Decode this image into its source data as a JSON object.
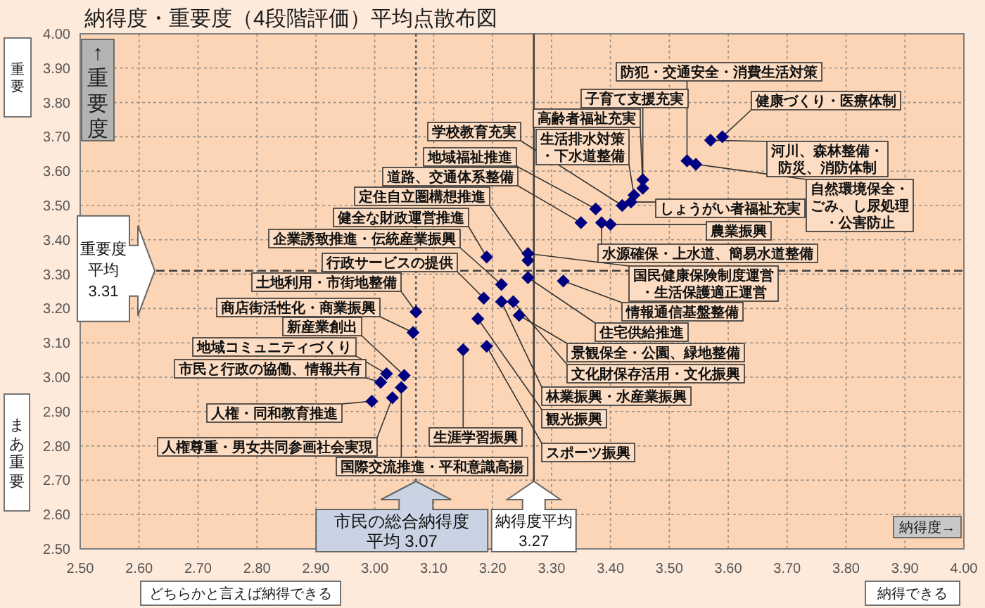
{
  "chart_data": {
    "type": "scatter",
    "title": "納得度・重要度（4段階評価）平均点散布図",
    "xlim": [
      2.5,
      4.0
    ],
    "ylim": [
      2.5,
      4.0
    ],
    "xticks": [
      {
        "value": 2.5,
        "label": "2.50"
      },
      {
        "value": 2.6,
        "label": "2.60"
      },
      {
        "value": 2.7,
        "label": "2.70"
      },
      {
        "value": 2.8,
        "label": "2.80"
      },
      {
        "value": 2.9,
        "label": "2.90"
      },
      {
        "value": 3.0,
        "label": "3.00"
      },
      {
        "value": 3.1,
        "label": "3.10"
      },
      {
        "value": 3.2,
        "label": "3.20"
      },
      {
        "value": 3.3,
        "label": "3.30"
      },
      {
        "value": 3.4,
        "label": "3.40"
      },
      {
        "value": 3.5,
        "label": "3.50"
      },
      {
        "value": 3.6,
        "label": "3.60"
      },
      {
        "value": 3.7,
        "label": "3.70"
      },
      {
        "value": 3.8,
        "label": "3.80"
      },
      {
        "value": 3.9,
        "label": "3.90"
      },
      {
        "value": 4.0,
        "label": "4.00"
      }
    ],
    "yticks": [
      {
        "value": 2.5,
        "label": "2.50"
      },
      {
        "value": 2.6,
        "label": "2.60"
      },
      {
        "value": 2.7,
        "label": "2.70"
      },
      {
        "value": 2.8,
        "label": "2.80"
      },
      {
        "value": 2.9,
        "label": "2.90"
      },
      {
        "value": 3.0,
        "label": "3.00"
      },
      {
        "value": 3.1,
        "label": "3.10"
      },
      {
        "value": 3.2,
        "label": "3.20"
      },
      {
        "value": 3.3,
        "label": "3.30"
      },
      {
        "value": 3.4,
        "label": "3.40"
      },
      {
        "value": 3.5,
        "label": "3.50"
      },
      {
        "value": 3.6,
        "label": "3.60"
      },
      {
        "value": 3.7,
        "label": "3.70"
      },
      {
        "value": 3.8,
        "label": "3.80"
      },
      {
        "value": 3.9,
        "label": "3.90"
      },
      {
        "value": 4.0,
        "label": "4.00"
      }
    ],
    "grid": true,
    "marker": "diamond",
    "series": [
      {
        "color": "#000080",
        "x": [
          3.53,
          3.455,
          3.455,
          3.44,
          3.59,
          3.57,
          3.545,
          3.435,
          3.4,
          3.385,
          3.42,
          3.375,
          3.35,
          3.26,
          3.19,
          3.215,
          3.185,
          3.07,
          3.065,
          3.05,
          3.02,
          3.01,
          2.995,
          3.03,
          3.045,
          3.15,
          3.19,
          3.175,
          3.215,
          3.235,
          3.245,
          3.26,
          3.32,
          3.26
        ],
        "values": [
          3.63,
          3.575,
          3.55,
          3.53,
          3.7,
          3.69,
          3.62,
          3.51,
          3.445,
          3.45,
          3.5,
          3.49,
          3.45,
          3.34,
          3.35,
          3.27,
          3.23,
          3.19,
          3.13,
          3.005,
          3.01,
          2.985,
          2.93,
          2.94,
          2.97,
          3.08,
          3.09,
          3.17,
          3.22,
          3.22,
          3.18,
          3.29,
          3.28,
          3.36
        ]
      }
    ],
    "ref_lines": [
      {
        "axis": "y",
        "value": 3.31,
        "label": "重要度平均3.31",
        "color": "#404040",
        "line_style": "dashed"
      },
      {
        "axis": "x",
        "value": 3.07,
        "label": "市民の総合納得度平均 3.07",
        "color": "#606060",
        "line_style": "dotted"
      },
      {
        "axis": "x",
        "value": 3.27,
        "label": "納得度平均3.27",
        "color": "#404040",
        "line_style": "solid"
      }
    ],
    "annotations": [
      {
        "text": "防犯・交通安全・消費生活対策",
        "x": 3.53,
        "y": 3.63
      },
      {
        "text": "子育て支援充実",
        "x": 3.455,
        "y": 3.575
      },
      {
        "text": "高齢者福祉充実",
        "x": 3.455,
        "y": 3.55
      },
      {
        "text": "生活排水対策・下水道整備",
        "x": 3.44,
        "y": 3.53
      },
      {
        "text": "健康づくり・医療体制",
        "x": 3.59,
        "y": 3.7
      },
      {
        "text": "河川、森林整備・防災、消防体制",
        "x": 3.57,
        "y": 3.69
      },
      {
        "text": "自然環境保全・ごみ、し尿処理・公害防止",
        "x": 3.545,
        "y": 3.62
      },
      {
        "text": "しょうがい者福祉充実",
        "x": 3.435,
        "y": 3.51
      },
      {
        "text": "農業振興",
        "x": 3.4,
        "y": 3.445
      },
      {
        "text": "水源確保・上水道、簡易水道整備",
        "x": 3.385,
        "y": 3.45
      },
      {
        "text": "学校教育充実",
        "x": 3.42,
        "y": 3.5
      },
      {
        "text": "地域福祉推進",
        "x": 3.375,
        "y": 3.49
      },
      {
        "text": "道路、交通体系整備",
        "x": 3.35,
        "y": 3.45
      },
      {
        "text": "定住自立圏構想推進",
        "x": 3.26,
        "y": 3.34
      },
      {
        "text": "健全な財政運営推進",
        "x": 3.19,
        "y": 3.35
      },
      {
        "text": "企業誘致推進・伝統産業振興",
        "x": 3.215,
        "y": 3.27
      },
      {
        "text": "行政サービスの提供",
        "x": 3.185,
        "y": 3.23
      },
      {
        "text": "土地利用・市街地整備",
        "x": 3.07,
        "y": 3.19
      },
      {
        "text": "商店街活性化・商業振興",
        "x": 3.065,
        "y": 3.13
      },
      {
        "text": "新産業創出",
        "x": 3.05,
        "y": 3.005
      },
      {
        "text": "地域コミュニティづくり",
        "x": 3.02,
        "y": 3.01
      },
      {
        "text": "市民と行政の協働、情報共有",
        "x": 3.01,
        "y": 2.985
      },
      {
        "text": "人権・同和教育推進",
        "x": 2.995,
        "y": 2.93
      },
      {
        "text": "人権尊重・男女共同参画社会実現",
        "x": 3.03,
        "y": 2.94
      },
      {
        "text": "国際交流推進・平和意識高揚",
        "x": 3.045,
        "y": 2.97
      },
      {
        "text": "生涯学習振興",
        "x": 3.15,
        "y": 3.08
      },
      {
        "text": "スポーツ振興",
        "x": 3.19,
        "y": 3.09
      },
      {
        "text": "観光振興",
        "x": 3.175,
        "y": 3.17
      },
      {
        "text": "林業振興・水産業振興",
        "x": 3.215,
        "y": 3.22
      },
      {
        "text": "文化財保存活用・文化振興",
        "x": 3.235,
        "y": 3.22
      },
      {
        "text": "景観保全・公園、緑地整備",
        "x": 3.245,
        "y": 3.18
      },
      {
        "text": "住宅供給推進",
        "x": 3.26,
        "y": 3.29
      },
      {
        "text": "情報通信基盤整備",
        "x": 3.32,
        "y": 3.28
      },
      {
        "text": "国民健康保険制度運営・生活保護適正運営",
        "x": 3.26,
        "y": 3.36
      },
      "↑重要度",
      "納得度→",
      "重要",
      "まあ重要",
      "どちらかと言えば納得できる",
      "納得できる"
    ]
  }
}
